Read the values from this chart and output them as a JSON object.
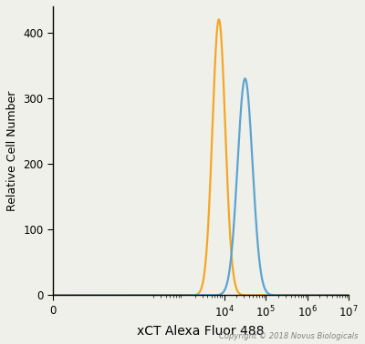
{
  "orange_peak_x": 7500,
  "orange_peak_y": 420,
  "orange_sigma_log": 0.155,
  "blue_peak_x": 32000,
  "blue_peak_y": 330,
  "blue_sigma_log": 0.18,
  "orange_color": "#F5A623",
  "blue_color": "#5BA3D0",
  "xlabel": "xCT Alexa Fluor 488",
  "ylabel": "Relative Cell Number",
  "ylim": [
    0,
    440
  ],
  "yticks": [
    0,
    100,
    200,
    300,
    400
  ],
  "xlim_min": 0,
  "xlim_max": 10000000.0,
  "linthresh": 10,
  "copyright_text": "Copyright © 2018 Novus Biologicals",
  "bg_color": "#f0f0ea",
  "linewidth": 1.6,
  "xtick_labels": [
    "0",
    "10$^4$",
    "10$^5$",
    "10$^6$",
    "10$^7$"
  ],
  "xtick_positions": [
    0,
    10000,
    100000,
    1000000,
    10000000
  ],
  "ylabel_fontsize": 9,
  "xlabel_fontsize": 10,
  "tick_fontsize": 8.5
}
